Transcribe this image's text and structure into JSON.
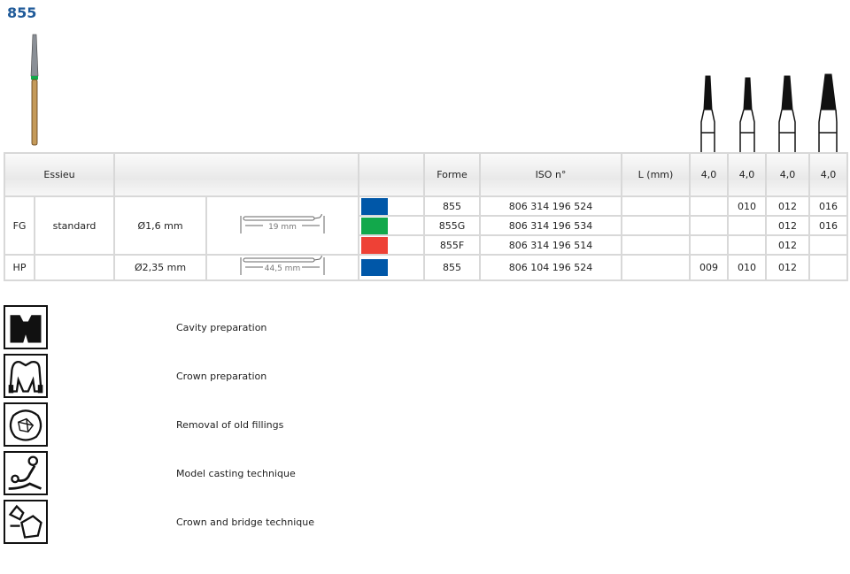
{
  "title": "855",
  "colors": {
    "blue": "#0057a8",
    "green": "#12a84b",
    "red": "#ee4136",
    "title": "#1f5a99"
  },
  "table": {
    "headers": {
      "essieu": "Essieu",
      "forme": "Forme",
      "iso": "ISO n°",
      "length": "L (mm)",
      "sizes": [
        "4,0",
        "4,0",
        "4,0",
        "4,0"
      ]
    },
    "groups": [
      {
        "shank": "FG",
        "type": "standard",
        "diameter": "Ø1,6 mm",
        "length_label": "19 mm",
        "rows": [
          {
            "color": "blue",
            "forme": "855",
            "iso": "806 314 196 524",
            "sizes": [
              "",
              "010",
              "012",
              "016"
            ]
          },
          {
            "color": "green",
            "forme": "855G",
            "iso": "806 314 196 534",
            "sizes": [
              "",
              "",
              "012",
              "016"
            ]
          },
          {
            "color": "red",
            "forme": "855F",
            "iso": "806 314 196 514",
            "sizes": [
              "",
              "",
              "012",
              ""
            ]
          }
        ]
      },
      {
        "shank": "HP",
        "type": "",
        "diameter": "Ø2,35 mm",
        "length_label": "44,5 mm",
        "rows": [
          {
            "color": "blue",
            "forme": "855",
            "iso": "806 104 196 524",
            "sizes": [
              "009",
              "010",
              "012",
              ""
            ]
          }
        ]
      }
    ]
  },
  "indications": [
    {
      "icon": "cavity-preparation-icon",
      "label": "Cavity preparation"
    },
    {
      "icon": "crown-preparation-icon",
      "label": "Crown preparation"
    },
    {
      "icon": "filling-removal-icon",
      "label": "Removal of old fillings"
    },
    {
      "icon": "model-casting-icon",
      "label": "Model casting technique"
    },
    {
      "icon": "crown-bridge-icon",
      "label": "Crown and bridge technique"
    }
  ]
}
